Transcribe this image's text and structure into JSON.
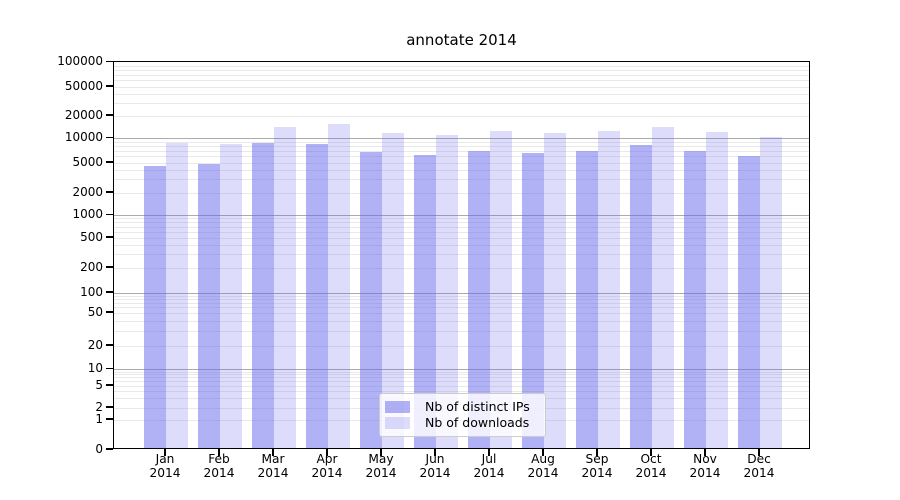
{
  "chart_data": {
    "type": "bar",
    "title": "annotate 2014",
    "categories": [
      "Jan",
      "Feb",
      "Mar",
      "Apr",
      "May",
      "Jun",
      "Jul",
      "Aug",
      "Sep",
      "Oct",
      "Nov",
      "Dec"
    ],
    "category_year": "2014",
    "series": [
      {
        "name": "Nb of distinct IPs",
        "color": "rgba(100,100,235,0.50)",
        "values": [
          4300,
          4500,
          8300,
          8000,
          6500,
          6000,
          6600,
          6300,
          6700,
          7800,
          6700,
          5700
        ]
      },
      {
        "name": "Nb of downloads",
        "color": "rgba(100,100,235,0.22)",
        "values": [
          8300,
          8000,
          13600,
          14600,
          11300,
          10400,
          11700,
          11100,
          11700,
          13300,
          11400,
          9900
        ]
      }
    ],
    "yticks": [
      0,
      1,
      2,
      5,
      10,
      20,
      50,
      100,
      200,
      500,
      1000,
      2000,
      5000,
      10000,
      20000,
      50000,
      100000
    ],
    "ylim": [
      0,
      100000
    ],
    "yscale": "symlog",
    "grid": "on",
    "legend_position": "lower center",
    "legend_items": [
      "Nb of distinct IPs",
      "Nb of downloads"
    ]
  }
}
